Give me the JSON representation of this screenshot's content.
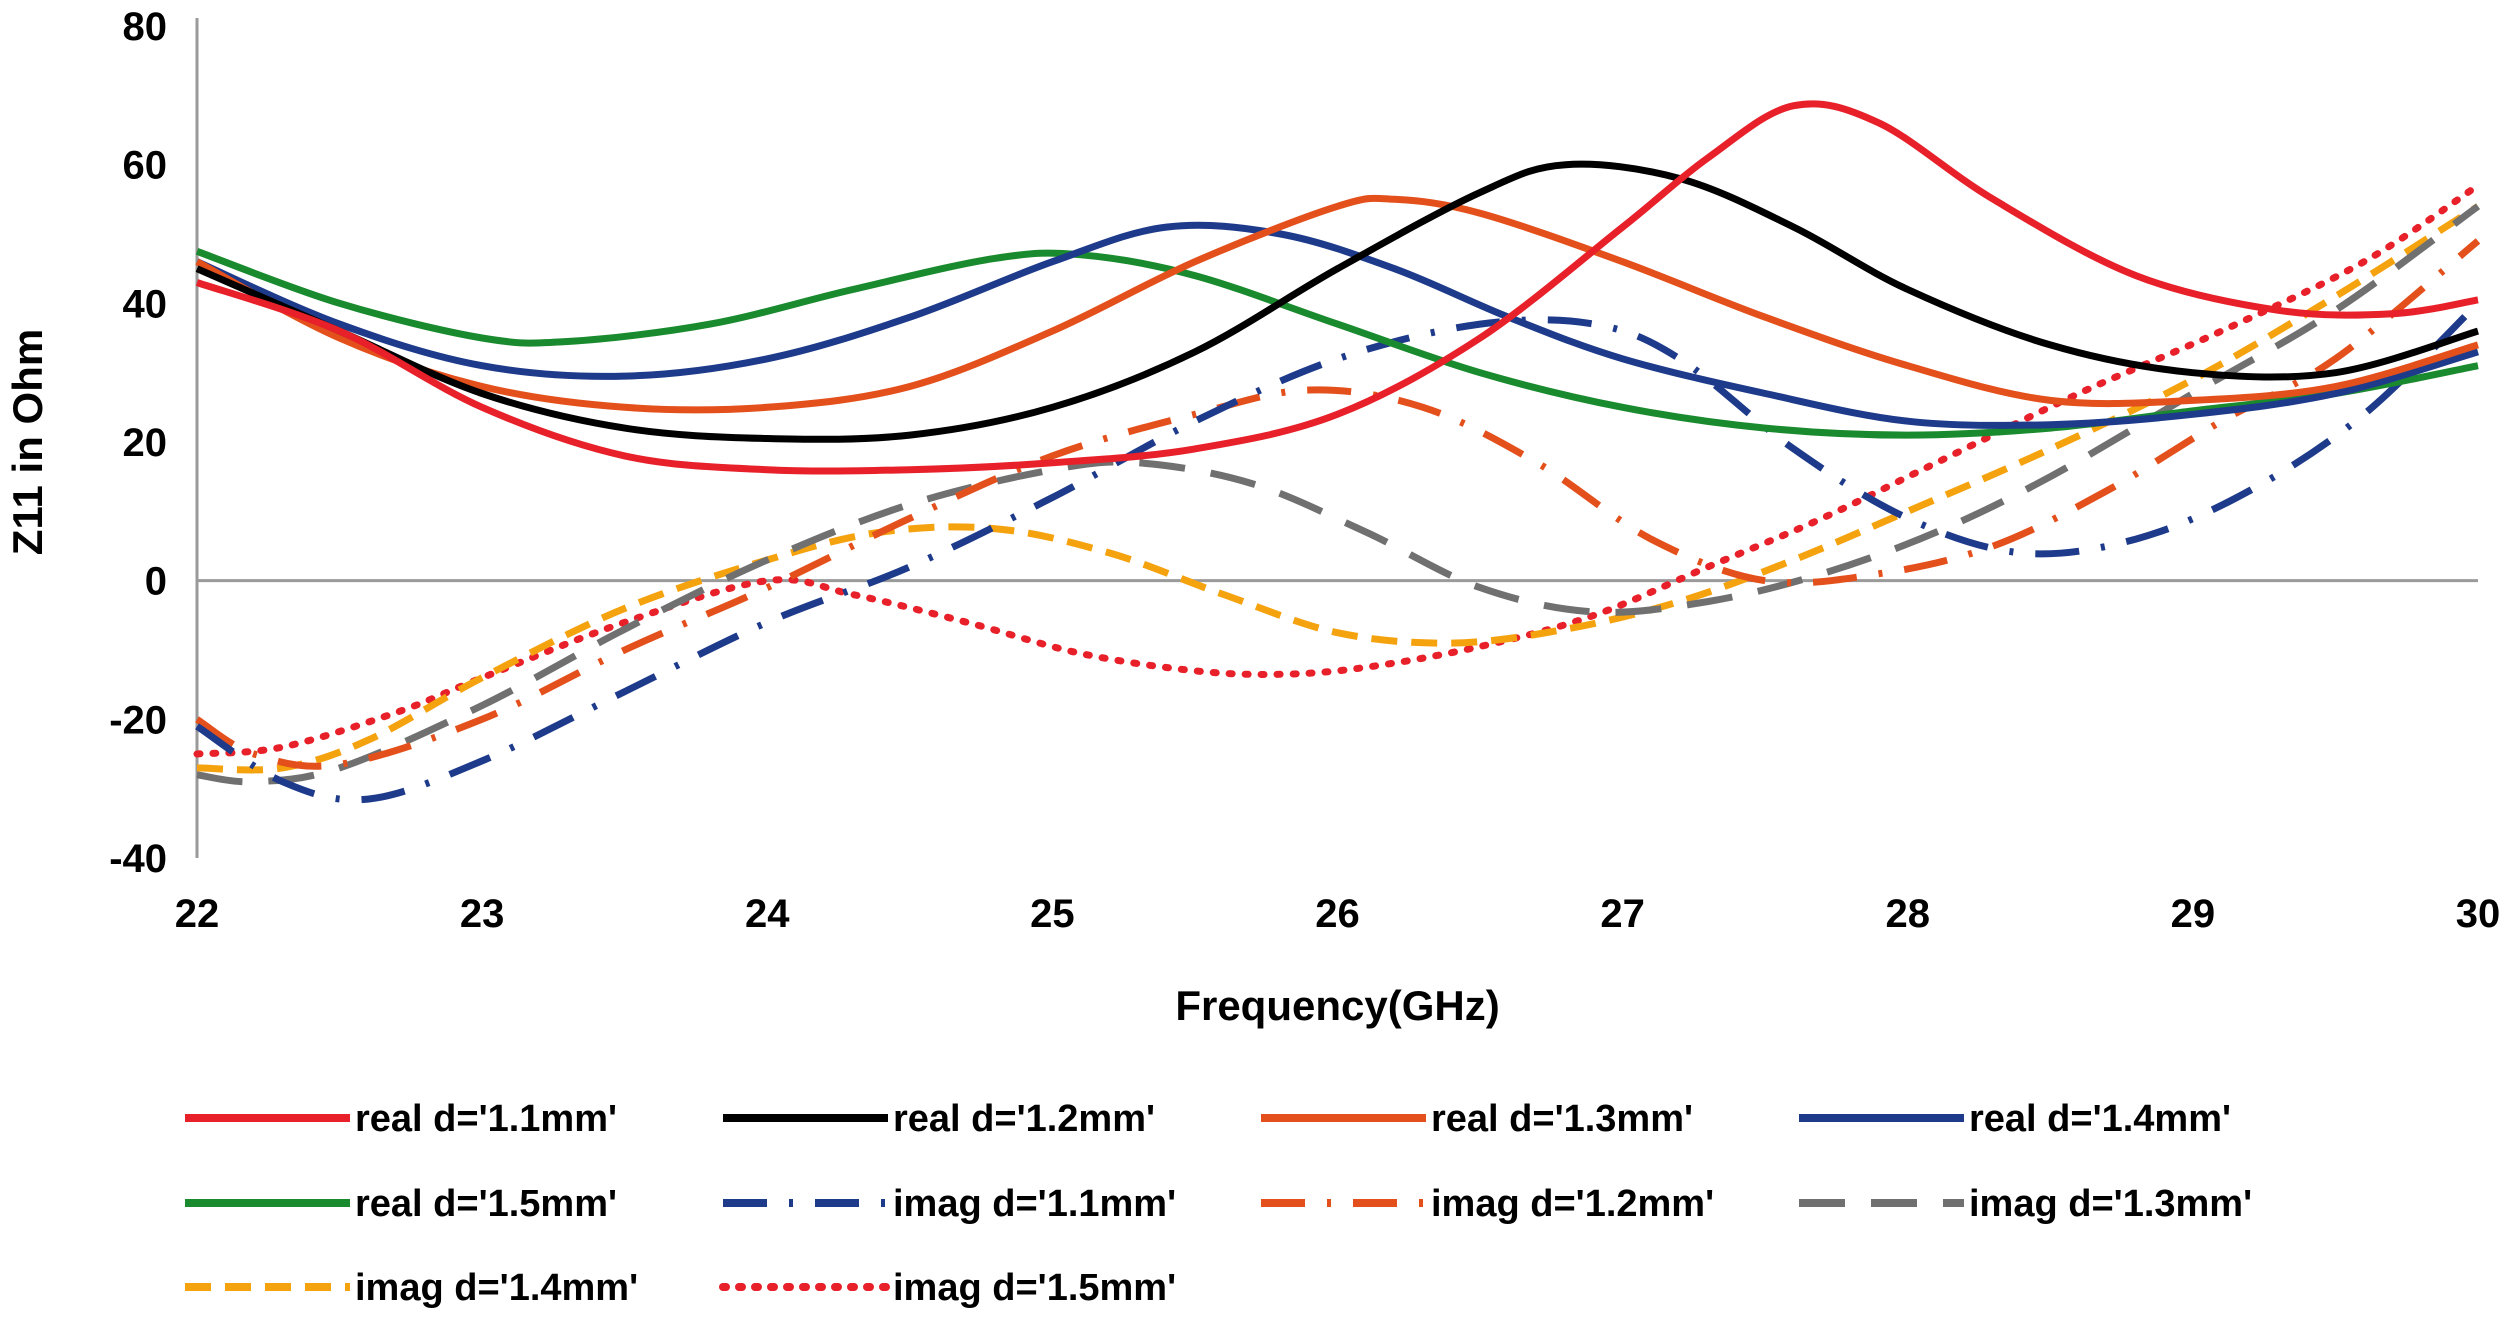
{
  "chart_data": {
    "type": "line",
    "title": "",
    "xlabel": "Frequency(GHz)",
    "ylabel": "Z11 in Ohm",
    "xlim": [
      22,
      30
    ],
    "ylim": [
      -40,
      80
    ],
    "xticks": [
      22,
      23,
      24,
      25,
      26,
      27,
      28,
      29,
      30
    ],
    "yticks": [
      -40,
      -20,
      0,
      20,
      40,
      60,
      80
    ],
    "legend_position": "bottom",
    "series": [
      {
        "name": "real d='1.1mm'",
        "color": "#e8202a",
        "dash": "solid",
        "points": [
          [
            22,
            43
          ],
          [
            22.5,
            36
          ],
          [
            23,
            25
          ],
          [
            23.5,
            18
          ],
          [
            24,
            16
          ],
          [
            24.5,
            16
          ],
          [
            25,
            17
          ],
          [
            25.5,
            19
          ],
          [
            26,
            24
          ],
          [
            26.5,
            35
          ],
          [
            27,
            51
          ],
          [
            27.3,
            61
          ],
          [
            27.6,
            68.5
          ],
          [
            27.9,
            66
          ],
          [
            28.3,
            55
          ],
          [
            28.8,
            44
          ],
          [
            29.3,
            39
          ],
          [
            29.7,
            38.5
          ],
          [
            30,
            40.5
          ]
        ]
      },
      {
        "name": "real d='1.2mm'",
        "color": "#000000",
        "dash": "solid",
        "points": [
          [
            22,
            45
          ],
          [
            22.5,
            36
          ],
          [
            23,
            27
          ],
          [
            23.5,
            22
          ],
          [
            24,
            20.5
          ],
          [
            24.5,
            21
          ],
          [
            25,
            25
          ],
          [
            25.5,
            33
          ],
          [
            26,
            45
          ],
          [
            26.5,
            56
          ],
          [
            26.8,
            60
          ],
          [
            27.2,
            58
          ],
          [
            27.6,
            51
          ],
          [
            28,
            42
          ],
          [
            28.5,
            34
          ],
          [
            29,
            30
          ],
          [
            29.5,
            30
          ],
          [
            30,
            36
          ]
        ]
      },
      {
        "name": "real d='1.3mm'",
        "color": "#e4501c",
        "dash": "solid",
        "points": [
          [
            22,
            46
          ],
          [
            22.5,
            35
          ],
          [
            23,
            28
          ],
          [
            23.5,
            25
          ],
          [
            24,
            25
          ],
          [
            24.5,
            28
          ],
          [
            25,
            36
          ],
          [
            25.5,
            46
          ],
          [
            26,
            54
          ],
          [
            26.2,
            55
          ],
          [
            26.5,
            53
          ],
          [
            27,
            46
          ],
          [
            27.5,
            38
          ],
          [
            28,
            31
          ],
          [
            28.5,
            26
          ],
          [
            29,
            26
          ],
          [
            29.5,
            28
          ],
          [
            30,
            34
          ]
        ]
      },
      {
        "name": "real d='1.4mm'",
        "color": "#1e3a8a",
        "dash": "solid",
        "points": [
          [
            22,
            46
          ],
          [
            22.5,
            37
          ],
          [
            23,
            31
          ],
          [
            23.5,
            29.5
          ],
          [
            24,
            32
          ],
          [
            24.5,
            38
          ],
          [
            25,
            46
          ],
          [
            25.4,
            51
          ],
          [
            25.8,
            50
          ],
          [
            26.2,
            45
          ],
          [
            26.6,
            38
          ],
          [
            27,
            32
          ],
          [
            27.5,
            27
          ],
          [
            28,
            23
          ],
          [
            28.5,
            22.5
          ],
          [
            29,
            24
          ],
          [
            29.5,
            27
          ],
          [
            30,
            33
          ]
        ]
      },
      {
        "name": "real d='1.5mm'",
        "color": "#1a8a2e",
        "dash": "solid",
        "points": [
          [
            22,
            47.5
          ],
          [
            22.5,
            40
          ],
          [
            23,
            35
          ],
          [
            23.3,
            34.5
          ],
          [
            23.8,
            37
          ],
          [
            24.3,
            42
          ],
          [
            24.8,
            46.5
          ],
          [
            25.1,
            47
          ],
          [
            25.5,
            44
          ],
          [
            26,
            37
          ],
          [
            26.5,
            30
          ],
          [
            27,
            25
          ],
          [
            27.5,
            22
          ],
          [
            28,
            21
          ],
          [
            28.5,
            22
          ],
          [
            29,
            24.5
          ],
          [
            29.5,
            27
          ],
          [
            30,
            31
          ]
        ]
      },
      {
        "name": "imag d='1.1mm'",
        "color": "#1e3a8a",
        "dash": "longdashdot",
        "points": [
          [
            22,
            -21
          ],
          [
            22.3,
            -29
          ],
          [
            22.6,
            -31.5
          ],
          [
            23,
            -26
          ],
          [
            23.5,
            -16
          ],
          [
            24,
            -6
          ],
          [
            24.5,
            2
          ],
          [
            25,
            12
          ],
          [
            25.5,
            23
          ],
          [
            26,
            32
          ],
          [
            26.5,
            37
          ],
          [
            26.9,
            37
          ],
          [
            27.2,
            32
          ],
          [
            27.6,
            19
          ],
          [
            28,
            9
          ],
          [
            28.4,
            4
          ],
          [
            28.8,
            6
          ],
          [
            29.2,
            13
          ],
          [
            29.6,
            24
          ],
          [
            30,
            40
          ]
        ]
      },
      {
        "name": "imag d='1.2mm'",
        "color": "#e4501c",
        "dash": "longdashdot",
        "points": [
          [
            22,
            -20
          ],
          [
            22.2,
            -25
          ],
          [
            22.5,
            -26.5
          ],
          [
            23,
            -20
          ],
          [
            23.5,
            -10
          ],
          [
            24,
            -1
          ],
          [
            24.5,
            9
          ],
          [
            25,
            18
          ],
          [
            25.5,
            24
          ],
          [
            25.9,
            27.5
          ],
          [
            26.3,
            25
          ],
          [
            26.7,
            17
          ],
          [
            27.1,
            6
          ],
          [
            27.5,
            0
          ],
          [
            27.9,
            1
          ],
          [
            28.3,
            5
          ],
          [
            28.7,
            13
          ],
          [
            29.1,
            23
          ],
          [
            29.5,
            32
          ],
          [
            30,
            49
          ]
        ]
      },
      {
        "name": "imag d='1.3mm'",
        "color": "#707070",
        "dash": "longdash",
        "points": [
          [
            22,
            -28
          ],
          [
            22.2,
            -29
          ],
          [
            22.5,
            -27
          ],
          [
            23,
            -18
          ],
          [
            23.5,
            -7
          ],
          [
            24,
            3
          ],
          [
            24.5,
            11
          ],
          [
            25,
            16
          ],
          [
            25.3,
            17
          ],
          [
            25.7,
            14
          ],
          [
            26.1,
            7
          ],
          [
            26.5,
            -1
          ],
          [
            26.9,
            -4.5
          ],
          [
            27.3,
            -3
          ],
          [
            27.7,
            1
          ],
          [
            28.1,
            7
          ],
          [
            28.5,
            15
          ],
          [
            29,
            27
          ],
          [
            29.5,
            39
          ],
          [
            30,
            54
          ]
        ]
      },
      {
        "name": "imag d='1.4mm'",
        "color": "#f5a20f",
        "dash": "dashed",
        "points": [
          [
            22,
            -27
          ],
          [
            22.3,
            -27
          ],
          [
            22.6,
            -23
          ],
          [
            23,
            -14
          ],
          [
            23.5,
            -4
          ],
          [
            24,
            3
          ],
          [
            24.4,
            7
          ],
          [
            24.8,
            7.5
          ],
          [
            25.2,
            4
          ],
          [
            25.6,
            -2
          ],
          [
            26,
            -7.5
          ],
          [
            26.4,
            -9
          ],
          [
            26.8,
            -7
          ],
          [
            27.2,
            -3
          ],
          [
            27.6,
            3
          ],
          [
            28,
            10
          ],
          [
            28.5,
            19
          ],
          [
            29,
            29
          ],
          [
            29.5,
            41
          ],
          [
            30,
            54
          ]
        ]
      },
      {
        "name": "imag d='1.5mm'",
        "color": "#e8202a",
        "dash": "dotted",
        "points": [
          [
            22,
            -25
          ],
          [
            22.3,
            -24
          ],
          [
            22.7,
            -19
          ],
          [
            23,
            -14
          ],
          [
            23.5,
            -6
          ],
          [
            24,
            0
          ],
          [
            24.3,
            -2
          ],
          [
            24.7,
            -6
          ],
          [
            25.1,
            -10.5
          ],
          [
            25.5,
            -13
          ],
          [
            25.8,
            -13.5
          ],
          [
            26.1,
            -12.5
          ],
          [
            26.5,
            -9.5
          ],
          [
            26.9,
            -5
          ],
          [
            27.3,
            2
          ],
          [
            27.7,
            9
          ],
          [
            28.1,
            17
          ],
          [
            28.6,
            27
          ],
          [
            29.1,
            36
          ],
          [
            29.6,
            46
          ],
          [
            30,
            57
          ]
        ]
      }
    ]
  }
}
